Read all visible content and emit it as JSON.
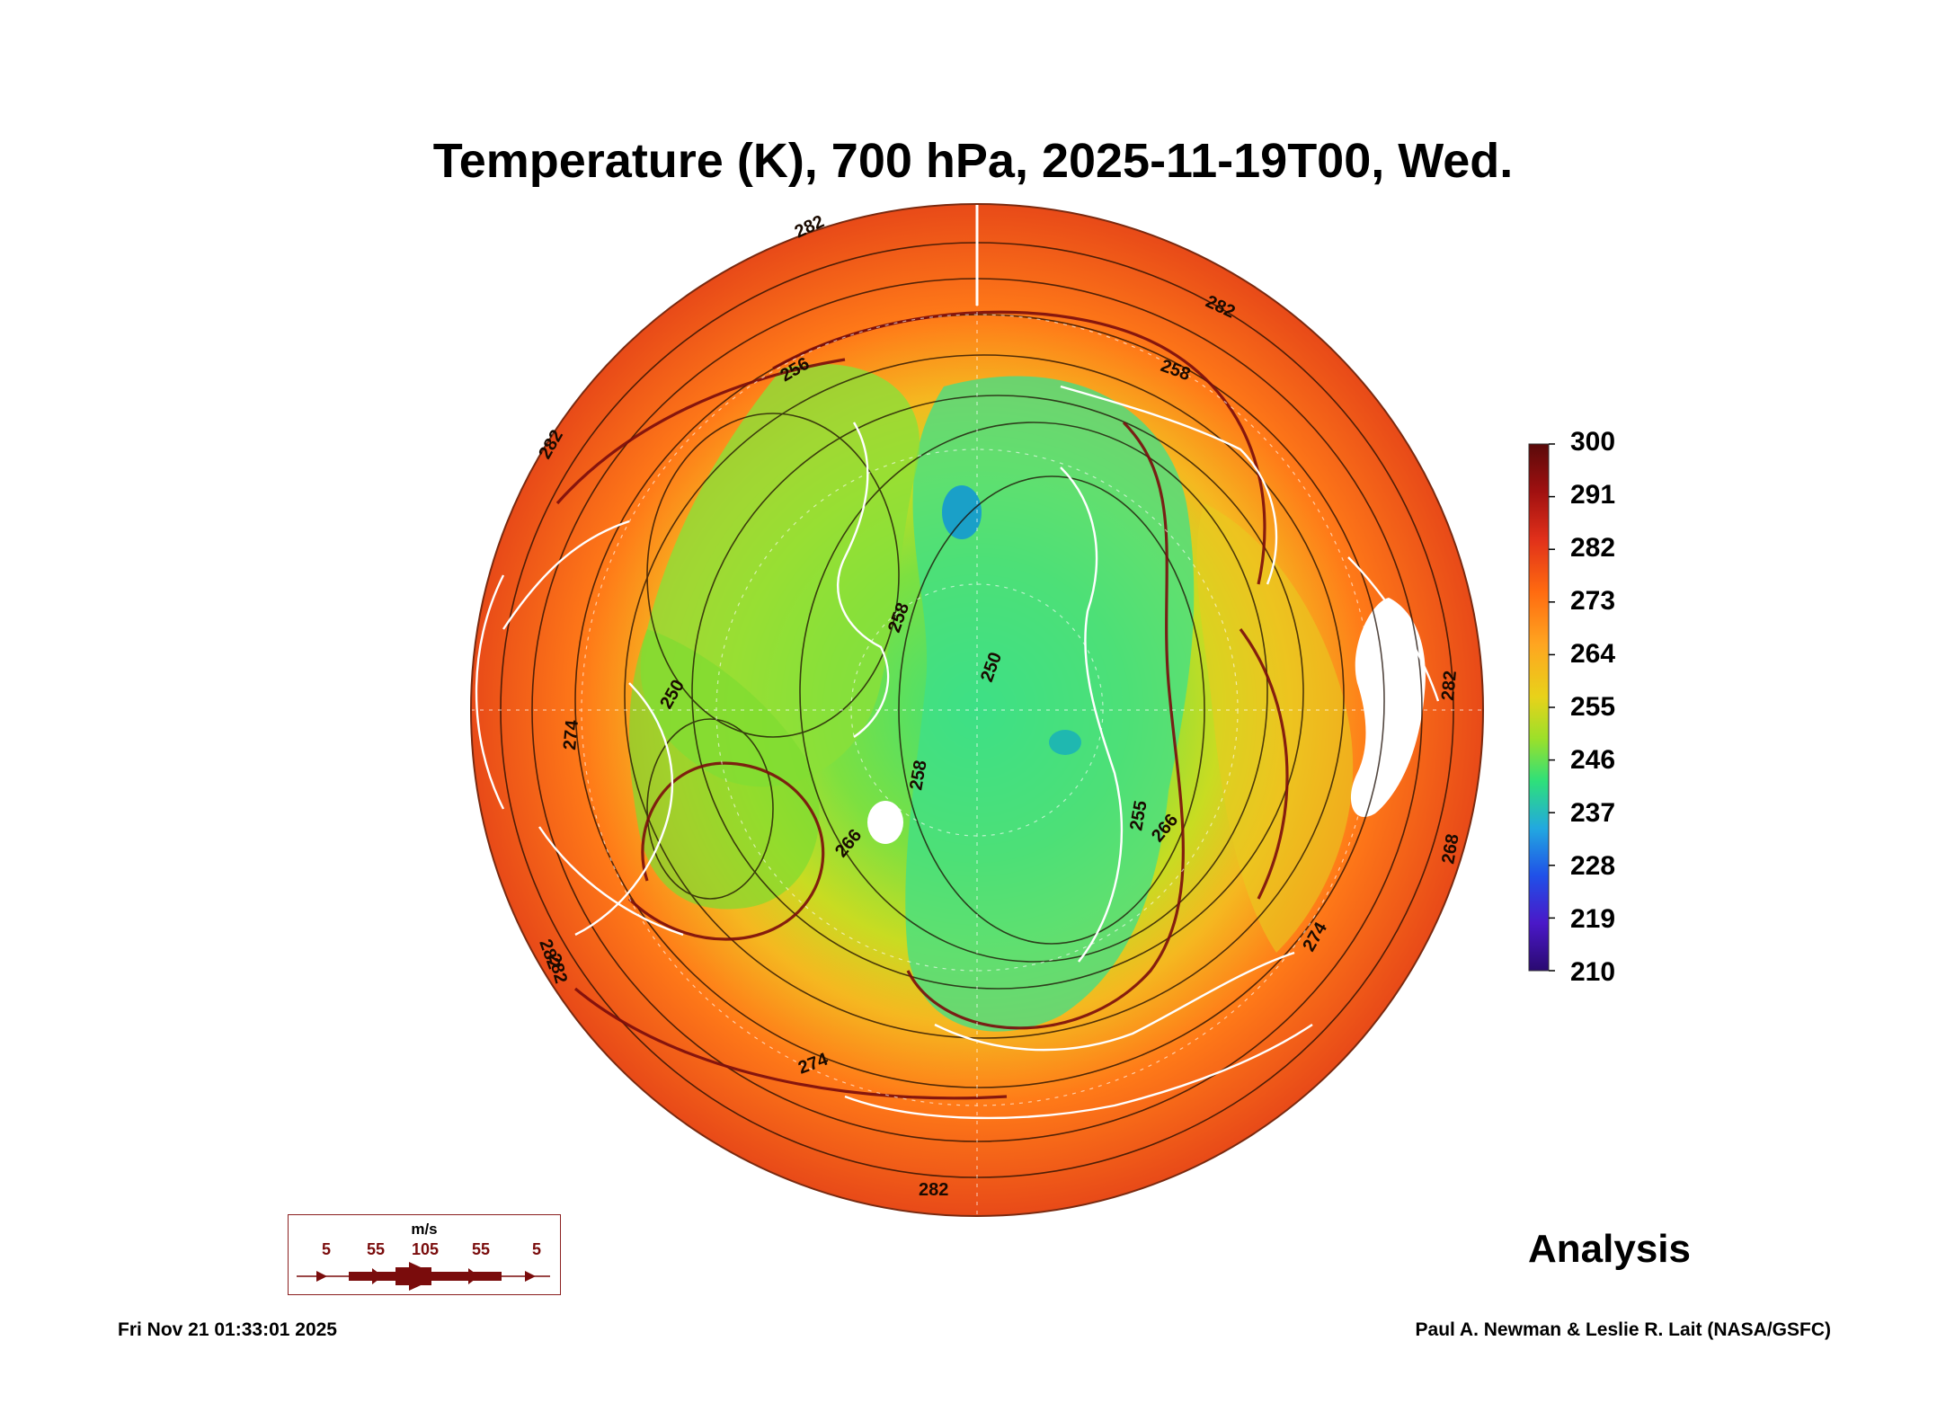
{
  "title": "Temperature (K), 700 hPa, 2025-11-19T00, Wed.",
  "colorbar": {
    "labels": [
      "300",
      "291",
      "282",
      "273",
      "264",
      "255",
      "246",
      "237",
      "228",
      "219",
      "210"
    ],
    "stops": [
      "#5a0a0a",
      "#a01010",
      "#e0301a",
      "#ff6a10",
      "#ffa520",
      "#e8d21a",
      "#9be02a",
      "#2ee07a",
      "#22a8e0",
      "#2050e8",
      "#4a18c8",
      "#2a0a70"
    ]
  },
  "contour_labels": [
    "282",
    "282",
    "258",
    "258",
    "282",
    "282",
    "274",
    "256",
    "250",
    "258",
    "266",
    "250",
    "255",
    "266",
    "274",
    "282",
    "274",
    "282",
    "268",
    "282"
  ],
  "legend": {
    "unit": "m/s",
    "speeds": [
      "5",
      "55",
      "105",
      "55",
      "5"
    ],
    "color": "#7a0c0c"
  },
  "analysis_label": "Analysis",
  "footer": {
    "timestamp": "Fri Nov 21 01:33:01 2025",
    "credit": "Paul A. Newman & Leslie R. Lait (NASA/GSFC)"
  }
}
